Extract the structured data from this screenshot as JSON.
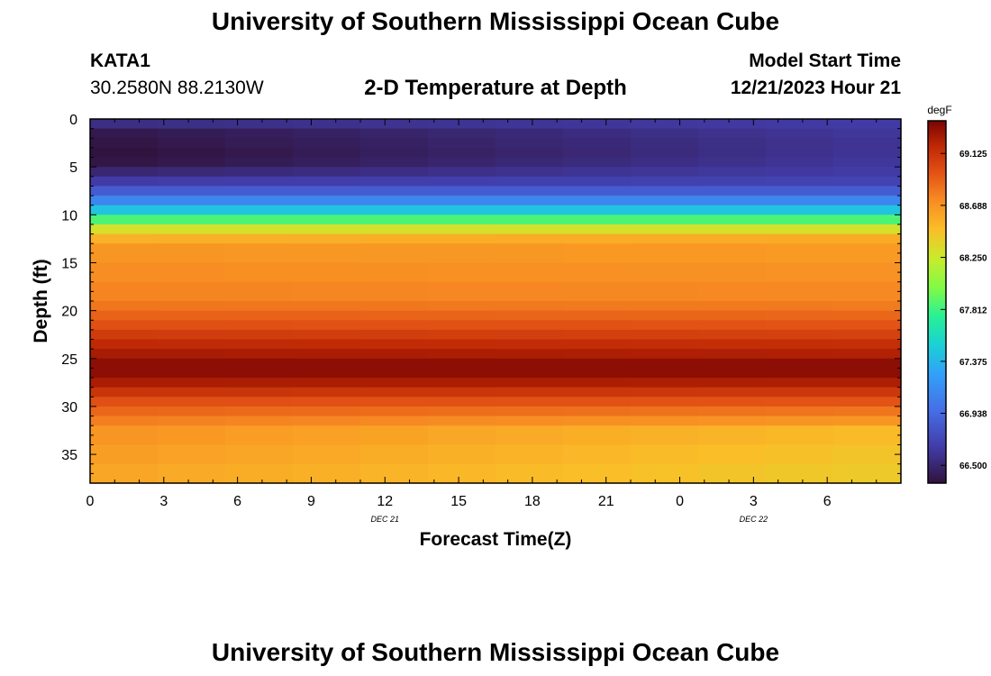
{
  "header": {
    "title": "University of Southern Mississippi Ocean Cube",
    "station": "KATA1",
    "coords": "30.2580N  88.2130W",
    "model_start_label": "Model Start Time",
    "model_start_value": "12/21/2023 Hour 21"
  },
  "footer": {
    "title": "University of Southern Mississippi Ocean Cube"
  },
  "chart_data": {
    "type": "heatmap",
    "title": "2-D Temperature at Depth",
    "xlabel": "Forecast Time(Z)",
    "ylabel": "Depth (ft)",
    "x_ticks": [
      "0",
      "3",
      "6",
      "9",
      "12",
      "15",
      "18",
      "21",
      "0",
      "3",
      "6"
    ],
    "date_labels": [
      {
        "label": "DEC 21",
        "at_tick": 4
      },
      {
        "label": "DEC 22",
        "at_tick": 9
      }
    ],
    "y_ticks": [
      0,
      5,
      10,
      15,
      20,
      25,
      30,
      35
    ],
    "ylim": [
      0,
      38
    ],
    "x_range_hours": [
      0,
      33
    ],
    "colorbar": {
      "unit": "degF",
      "ticks": [
        "69.125",
        "68.688",
        "68.250",
        "67.812",
        "67.375",
        "66.938",
        "66.500"
      ],
      "range": [
        66.35,
        69.4
      ]
    },
    "columns_count": 12,
    "depth_bands": [
      {
        "from": 0,
        "to": 1,
        "start": 66.55,
        "end": 66.65
      },
      {
        "from": 1,
        "to": 2,
        "start": 66.4,
        "end": 66.62
      },
      {
        "from": 2,
        "to": 3,
        "start": 66.38,
        "end": 66.6
      },
      {
        "from": 3,
        "to": 4,
        "start": 66.36,
        "end": 66.6
      },
      {
        "from": 4,
        "to": 5,
        "start": 66.38,
        "end": 66.62
      },
      {
        "from": 5,
        "to": 6,
        "start": 66.5,
        "end": 66.65
      },
      {
        "from": 6,
        "to": 7,
        "start": 66.65,
        "end": 66.7
      },
      {
        "from": 7,
        "to": 8,
        "start": 66.85,
        "end": 66.85
      },
      {
        "from": 8,
        "to": 9,
        "start": 67.1,
        "end": 67.1
      },
      {
        "from": 9,
        "to": 10,
        "start": 67.45,
        "end": 67.45
      },
      {
        "from": 10,
        "to": 11,
        "start": 67.85,
        "end": 67.85
      },
      {
        "from": 11,
        "to": 12,
        "start": 68.3,
        "end": 68.3
      },
      {
        "from": 12,
        "to": 13,
        "start": 68.55,
        "end": 68.58
      },
      {
        "from": 13,
        "to": 15,
        "start": 68.68,
        "end": 68.66
      },
      {
        "from": 15,
        "to": 17,
        "start": 68.72,
        "end": 68.7
      },
      {
        "from": 17,
        "to": 19,
        "start": 68.76,
        "end": 68.74
      },
      {
        "from": 19,
        "to": 20,
        "start": 68.82,
        "end": 68.8
      },
      {
        "from": 20,
        "to": 21,
        "start": 68.9,
        "end": 68.88
      },
      {
        "from": 21,
        "to": 22,
        "start": 68.98,
        "end": 68.96
      },
      {
        "from": 22,
        "to": 23,
        "start": 69.08,
        "end": 69.05
      },
      {
        "from": 23,
        "to": 24,
        "start": 69.18,
        "end": 69.15
      },
      {
        "from": 24,
        "to": 25,
        "start": 69.26,
        "end": 69.23
      },
      {
        "from": 25,
        "to": 27,
        "start": 69.34,
        "end": 69.34
      },
      {
        "from": 27,
        "to": 28,
        "start": 69.25,
        "end": 69.24
      },
      {
        "from": 28,
        "to": 29,
        "start": 69.12,
        "end": 69.1
      },
      {
        "from": 29,
        "to": 30,
        "start": 68.98,
        "end": 68.96
      },
      {
        "from": 30,
        "to": 31,
        "start": 68.88,
        "end": 68.82
      },
      {
        "from": 31,
        "to": 32,
        "start": 68.78,
        "end": 68.68
      },
      {
        "from": 32,
        "to": 34,
        "start": 68.68,
        "end": 68.5
      },
      {
        "from": 34,
        "to": 36,
        "start": 68.64,
        "end": 68.45
      },
      {
        "from": 36,
        "to": 38,
        "start": 68.6,
        "end": 68.42
      }
    ]
  }
}
